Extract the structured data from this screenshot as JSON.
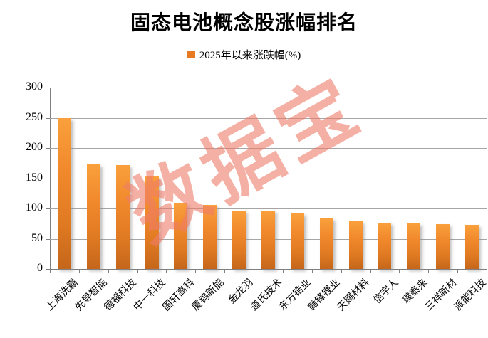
{
  "title": "固态电池概念股涨幅排名",
  "legend": {
    "label": "2025年以来涨跌幅(%)",
    "marker_color": "#e87a22"
  },
  "watermark": "数据宝",
  "colors": {
    "bar_top": "#f9a03c",
    "bar_bottom": "#c4661b",
    "gridline": "#a6a6a6",
    "axis": "#7f7f7f",
    "watermark": "#ee7b69"
  },
  "chart_data": {
    "type": "bar",
    "title": "固态电池概念股涨幅排名",
    "legend_entries": [
      "2025年以来涨跌幅(%)"
    ],
    "legend_position": "top",
    "grid": true,
    "xlabel": "",
    "ylabel": "",
    "ylim": [
      0,
      300
    ],
    "y_ticks": [
      0,
      50,
      100,
      150,
      200,
      250,
      300
    ],
    "categories": [
      "上海洗霸",
      "先导智能",
      "德福科技",
      "中一科技",
      "国轩高科",
      "厦钨新能",
      "金龙羽",
      "道氏技术",
      "东方锆业",
      "赣锋锂业",
      "天赐材料",
      "信宇人",
      "璞泰来",
      "三祥新材",
      "派能科技"
    ],
    "values": [
      250,
      173,
      172,
      153,
      109,
      106,
      97,
      96,
      92,
      83,
      79,
      76,
      75,
      74,
      73
    ]
  }
}
